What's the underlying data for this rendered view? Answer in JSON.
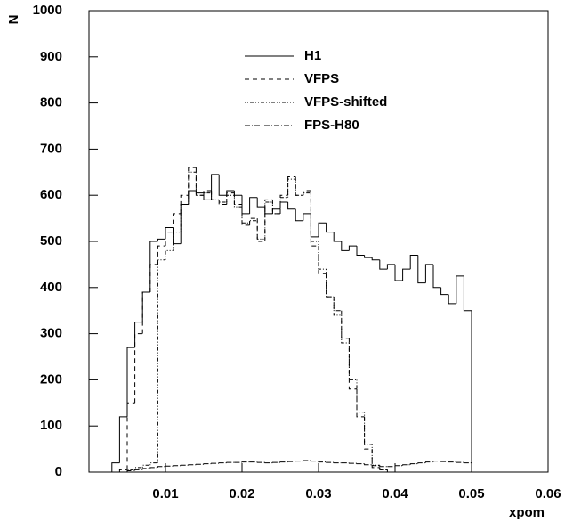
{
  "chart_data": {
    "type": "histogram",
    "xlabel": "xpom",
    "ylabel": "N",
    "xlim": [
      0,
      0.06
    ],
    "ylim": [
      0,
      1000
    ],
    "xticks": [
      0.01,
      0.02,
      0.03,
      0.04,
      0.05,
      0.06
    ],
    "yticks": [
      0,
      100,
      200,
      300,
      400,
      500,
      600,
      700,
      800,
      900,
      1000
    ],
    "legend": "top-center",
    "bins": [
      0.003,
      0.004,
      0.005,
      0.006,
      0.007,
      0.008,
      0.009,
      0.01,
      0.011,
      0.012,
      0.013,
      0.014,
      0.015,
      0.016,
      0.017,
      0.018,
      0.019,
      0.02,
      0.021,
      0.022,
      0.023,
      0.024,
      0.025,
      0.026,
      0.027,
      0.028,
      0.029,
      0.03,
      0.031,
      0.032,
      0.033,
      0.034,
      0.035,
      0.036,
      0.037,
      0.038,
      0.039,
      0.04,
      0.041,
      0.042,
      0.043,
      0.044,
      0.045,
      0.046,
      0.047,
      0.048,
      0.049,
      0.05
    ],
    "series": [
      {
        "name": "H1",
        "color": "#000000",
        "dash": "none",
        "values": [
          20,
          120,
          270,
          325,
          390,
          500,
          505,
          530,
          495,
          580,
          610,
          605,
          590,
          645,
          600,
          610,
          600,
          560,
          595,
          575,
          560,
          570,
          585,
          570,
          545,
          560,
          510,
          540,
          520,
          500,
          480,
          490,
          470,
          465,
          460,
          440,
          450,
          415,
          440,
          470,
          410,
          450,
          400,
          385,
          365,
          425,
          350
        ]
      },
      {
        "name": "VFPS",
        "color": "#000000",
        "dash": "5,4",
        "values": [
          0,
          5,
          150,
          300,
          390,
          450,
          490,
          520,
          560,
          600,
          660,
          600,
          610,
          590,
          580,
          605,
          580,
          535,
          550,
          500,
          590,
          560,
          600,
          640,
          600,
          610,
          490,
          430,
          380,
          350,
          290,
          180,
          120,
          50,
          10,
          5,
          0,
          0,
          0,
          0,
          0,
          0,
          0,
          0,
          0,
          0,
          0
        ]
      },
      {
        "name": "VFPS-shifted",
        "color": "#000000",
        "dash": "1,2,1,2,4,2",
        "values": [
          0,
          0,
          5,
          10,
          15,
          20,
          460,
          480,
          520,
          580,
          650,
          600,
          605,
          590,
          585,
          600,
          575,
          540,
          545,
          505,
          585,
          560,
          595,
          635,
          600,
          605,
          500,
          440,
          380,
          340,
          280,
          200,
          130,
          60,
          15,
          5,
          0,
          0,
          0,
          0,
          0,
          0,
          0,
          0,
          0,
          0,
          0
        ]
      },
      {
        "name": "FPS-H80",
        "color": "#000000",
        "dash": "6,2,1,2",
        "values": [
          0,
          0,
          3,
          5,
          8,
          10,
          12,
          13,
          14,
          15,
          16,
          17,
          18,
          19,
          20,
          21,
          21,
          22,
          22,
          21,
          20,
          21,
          22,
          23,
          24,
          25,
          24,
          22,
          21,
          20,
          20,
          19,
          18,
          16,
          14,
          12,
          12,
          14,
          16,
          18,
          20,
          22,
          24,
          23,
          22,
          21,
          20
        ]
      }
    ]
  }
}
